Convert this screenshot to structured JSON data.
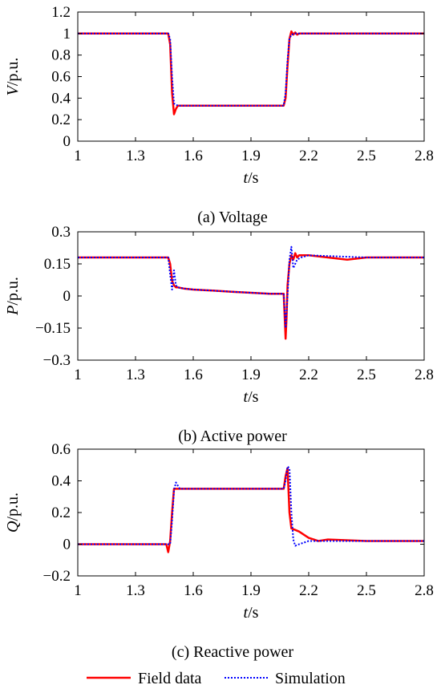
{
  "colors": {
    "field": "#ff0000",
    "simulation": "#0000ff"
  },
  "legend": {
    "field_label": "Field data",
    "simulation_label": "Simulation",
    "placement": "bottom"
  },
  "chart_data": [
    {
      "type": "line",
      "caption": "(a) Voltage",
      "xlabel_var": "t",
      "xlabel_unit": "/s",
      "ylabel_var": "V",
      "ylabel_unit": "/p.u.",
      "xlim": [
        1,
        2.8
      ],
      "ylim": [
        0,
        1.2
      ],
      "xticks": [
        1,
        1.3,
        1.6,
        1.9,
        2.2,
        2.5,
        2.8
      ],
      "xtick_labels": [
        "1",
        "1.3",
        "1.6",
        "1.9",
        "2.2",
        "2.5",
        "2.8"
      ],
      "yticks": [
        0,
        0.2,
        0.4,
        0.6,
        0.8,
        1,
        1.2
      ],
      "ytick_labels": [
        "0",
        "0.2",
        "0.4",
        "0.6",
        "0.8",
        "1",
        "1.2"
      ],
      "grid": false,
      "series": [
        {
          "name": "Field data",
          "style": "solid",
          "x": [
            1,
            1.47,
            1.48,
            1.49,
            1.5,
            1.51,
            1.52,
            1.55,
            1.7,
            1.9,
            2.07,
            2.08,
            2.09,
            2.1,
            2.11,
            2.12,
            2.13,
            2.14,
            2.15,
            2.2,
            2.5,
            2.8
          ],
          "y": [
            1,
            1,
            0.9,
            0.45,
            0.25,
            0.3,
            0.33,
            0.33,
            0.33,
            0.33,
            0.33,
            0.4,
            0.7,
            0.95,
            1.02,
            0.99,
            1.01,
            0.99,
            1.0,
            1.0,
            1.0,
            1.0
          ]
        },
        {
          "name": "Simulation",
          "style": "dotted",
          "x": [
            1,
            1.47,
            1.48,
            1.49,
            1.5,
            1.52,
            1.6,
            1.9,
            2.07,
            2.08,
            2.09,
            2.1,
            2.11,
            2.13,
            2.2,
            2.5,
            2.8
          ],
          "y": [
            1,
            1,
            0.95,
            0.6,
            0.35,
            0.33,
            0.33,
            0.33,
            0.33,
            0.45,
            0.75,
            0.95,
            0.99,
            1.0,
            1.0,
            1.0,
            1.0
          ]
        }
      ]
    },
    {
      "type": "line",
      "caption": "(b) Active power",
      "xlabel_var": "t",
      "xlabel_unit": "/s",
      "ylabel_var": "P",
      "ylabel_unit": "/p.u.",
      "xlim": [
        1,
        2.8
      ],
      "ylim": [
        -0.3,
        0.3
      ],
      "xticks": [
        1,
        1.3,
        1.6,
        1.9,
        2.2,
        2.5,
        2.8
      ],
      "xtick_labels": [
        "1",
        "1.3",
        "1.6",
        "1.9",
        "2.2",
        "2.5",
        "2.8"
      ],
      "yticks": [
        -0.3,
        -0.15,
        0,
        0.15,
        0.3
      ],
      "ytick_labels": [
        "−0.3",
        "−0.15",
        "0",
        "0.15",
        "0.3"
      ],
      "grid": false,
      "series": [
        {
          "name": "Field data",
          "style": "solid",
          "x": [
            1,
            1.2,
            1.47,
            1.48,
            1.49,
            1.5,
            1.51,
            1.52,
            1.55,
            1.6,
            1.7,
            1.8,
            1.9,
            2.0,
            2.07,
            2.08,
            2.085,
            2.09,
            2.1,
            2.11,
            2.12,
            2.13,
            2.14,
            2.15,
            2.2,
            2.3,
            2.4,
            2.5,
            2.6,
            2.8
          ],
          "y": [
            0.18,
            0.18,
            0.18,
            0.15,
            0.07,
            0.05,
            0.04,
            0.04,
            0.035,
            0.03,
            0.025,
            0.02,
            0.015,
            0.01,
            0.01,
            -0.2,
            -0.1,
            0.05,
            0.15,
            0.19,
            0.17,
            0.2,
            0.18,
            0.19,
            0.19,
            0.18,
            0.17,
            0.18,
            0.18,
            0.18
          ]
        },
        {
          "name": "Simulation",
          "style": "dotted",
          "x": [
            1,
            1.47,
            1.48,
            1.49,
            1.5,
            1.51,
            1.52,
            1.55,
            1.6,
            1.7,
            1.8,
            1.9,
            2.0,
            2.07,
            2.08,
            2.09,
            2.1,
            2.11,
            2.12,
            2.13,
            2.14,
            2.16,
            2.2,
            2.5,
            2.8
          ],
          "y": [
            0.18,
            0.18,
            0.1,
            0.03,
            0.12,
            0.05,
            0.04,
            0.035,
            0.03,
            0.025,
            0.02,
            0.015,
            0.01,
            0.01,
            -0.15,
            0.0,
            0.17,
            0.23,
            0.13,
            0.15,
            0.17,
            0.18,
            0.19,
            0.18,
            0.18
          ]
        }
      ]
    },
    {
      "type": "line",
      "caption": "(c) Reactive power",
      "xlabel_var": "t",
      "xlabel_unit": "/s",
      "ylabel_var": "Q",
      "ylabel_unit": "/p.u.",
      "xlim": [
        1,
        2.8
      ],
      "ylim": [
        -0.2,
        0.6
      ],
      "xticks": [
        1,
        1.3,
        1.6,
        1.9,
        2.2,
        2.5,
        2.8
      ],
      "xtick_labels": [
        "1",
        "1.3",
        "1.6",
        "1.9",
        "2.2",
        "2.5",
        "2.8"
      ],
      "yticks": [
        -0.2,
        0,
        0.2,
        0.4,
        0.6
      ],
      "ytick_labels": [
        "−0.2",
        "0",
        "0.2",
        "0.4",
        "0.6"
      ],
      "grid": false,
      "series": [
        {
          "name": "Field data",
          "style": "solid",
          "x": [
            1,
            1.46,
            1.47,
            1.48,
            1.49,
            1.5,
            1.51,
            1.55,
            1.7,
            1.9,
            2.07,
            2.08,
            2.09,
            2.1,
            2.11,
            2.13,
            2.15,
            2.2,
            2.25,
            2.3,
            2.5,
            2.8
          ],
          "y": [
            0,
            0,
            -0.05,
            0.02,
            0.2,
            0.35,
            0.35,
            0.35,
            0.35,
            0.35,
            0.35,
            0.43,
            0.48,
            0.2,
            0.1,
            0.09,
            0.08,
            0.04,
            0.02,
            0.03,
            0.02,
            0.02
          ]
        },
        {
          "name": "Simulation",
          "style": "dotted",
          "x": [
            1,
            1.47,
            1.48,
            1.49,
            1.5,
            1.51,
            1.53,
            1.6,
            1.9,
            2.07,
            2.08,
            2.09,
            2.1,
            2.11,
            2.12,
            2.13,
            2.15,
            2.2,
            2.3,
            2.5,
            2.8
          ],
          "y": [
            0,
            0,
            0.0,
            0.15,
            0.34,
            0.39,
            0.35,
            0.35,
            0.35,
            0.35,
            0.4,
            0.49,
            0.48,
            0.2,
            0.03,
            -0.01,
            0.0,
            0.02,
            0.02,
            0.02,
            0.02
          ]
        }
      ]
    }
  ]
}
